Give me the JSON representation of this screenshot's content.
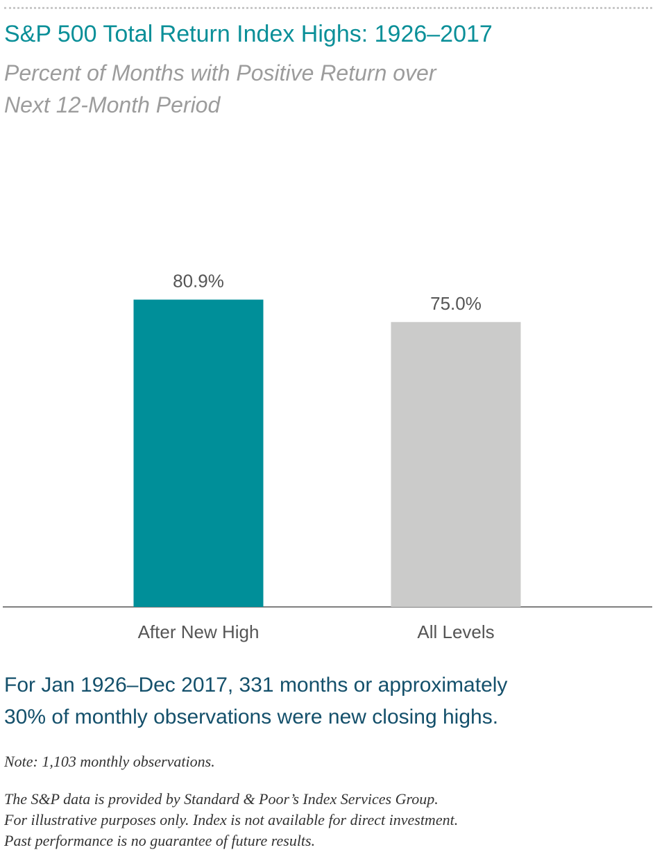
{
  "title": "S&P 500 Total Return Index Highs: 1926–2017",
  "subtitle_lines": [
    "Percent of Months with Positive Return over",
    "Next 12-Month Period"
  ],
  "chart_data": {
    "type": "bar",
    "categories": [
      "After New High",
      "All Levels"
    ],
    "values": [
      80.9,
      75.0
    ],
    "value_labels": [
      "80.9%",
      "75.0%"
    ],
    "colors": [
      "#008f99",
      "#cbcbca"
    ],
    "title": "S&P 500 Total Return Index Highs: 1926–2017",
    "subtitle": "Percent of Months with Positive Return over Next 12-Month Period",
    "xlabel": "",
    "ylabel": "",
    "ylim": [
      0,
      100
    ],
    "grid": false,
    "legend": "none"
  },
  "summary_lines": [
    "For Jan 1926–Dec 2017, 331 months or approximately",
    "30% of monthly observations were new closing highs."
  ],
  "note": "Note: 1,103 monthly observations.",
  "source_lines": [
    "The S&P data is provided by Standard & Poor’s Index Services Group.",
    "For illustrative purposes only. Index is not available for direct investment.",
    "Past performance is no guarantee of future results."
  ]
}
